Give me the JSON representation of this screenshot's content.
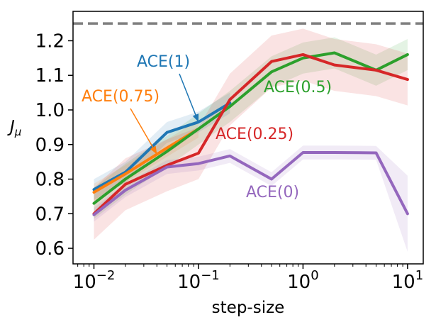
{
  "chart_data": {
    "type": "line",
    "title": "",
    "xlabel": "step-size",
    "ylabel": "J",
    "ylabel_sub": "μ",
    "xscale": "log",
    "xlim_log10": [
      -2.2,
      1.15
    ],
    "ylim": [
      0.555,
      1.285
    ],
    "yticks": [
      {
        "value": 0.6,
        "label": "0.6"
      },
      {
        "value": 0.7,
        "label": "0.7"
      },
      {
        "value": 0.8,
        "label": "0.8"
      },
      {
        "value": 0.9,
        "label": "0.9"
      },
      {
        "value": 1.0,
        "label": "1.0"
      },
      {
        "value": 1.1,
        "label": "1.1"
      },
      {
        "value": 1.2,
        "label": "1.2"
      }
    ],
    "xticks": [
      {
        "exp": -2,
        "base": "10",
        "sup": "−2"
      },
      {
        "exp": -1,
        "base": "10",
        "sup": "−1"
      },
      {
        "exp": 0,
        "base": "10",
        "sup": "0"
      },
      {
        "exp": 1,
        "base": "10",
        "sup": "1"
      }
    ],
    "reference_line": {
      "y": 1.25,
      "color": "#7f7f7f"
    },
    "series": [
      {
        "name": "ACE(1)",
        "color": "#1f77b4",
        "x": [
          0.01,
          0.02,
          0.05,
          0.1,
          0.2
        ],
        "y": [
          0.77,
          0.82,
          0.935,
          0.965,
          1.02
        ],
        "band": 0.03
      },
      {
        "name": "ACE(0.75)",
        "color": "#ff7f0e",
        "x": [
          0.01,
          0.02,
          0.05,
          0.1
        ],
        "y": [
          0.762,
          0.815,
          0.89,
          0.945
        ],
        "band": 0.025
      },
      {
        "name": "ACE(0.5)",
        "color": "#2ca02c",
        "x": [
          0.01,
          0.02,
          0.05,
          0.1,
          0.2,
          0.5,
          1,
          2,
          5,
          10
        ],
        "y": [
          0.73,
          0.8,
          0.88,
          0.945,
          1.01,
          1.11,
          1.15,
          1.165,
          1.115,
          1.16
        ],
        "band": 0.045
      },
      {
        "name": "ACE(0.25)",
        "color": "#d62728",
        "x": [
          0.01,
          0.02,
          0.05,
          0.1,
          0.2,
          0.5,
          1,
          2,
          5,
          10
        ],
        "y": [
          0.7,
          0.785,
          0.84,
          0.875,
          1.03,
          1.14,
          1.16,
          1.13,
          1.115,
          1.088
        ],
        "band": 0.075
      },
      {
        "name": "ACE(0)",
        "color": "#9467bd",
        "x": [
          0.01,
          0.02,
          0.05,
          0.1,
          0.2,
          0.5,
          1,
          2,
          5,
          10
        ],
        "y": [
          0.697,
          0.768,
          0.835,
          0.845,
          0.867,
          0.8,
          0.877,
          0.877,
          0.876,
          0.7
        ],
        "band": 0.02,
        "band_last": 0.11
      }
    ],
    "annotations": [
      {
        "text": "ACE(1)",
        "color": "#1f77b4",
        "arrow": true
      },
      {
        "text": "ACE(0.75)",
        "color": "#ff7f0e",
        "arrow": true
      },
      {
        "text": "ACE(0.5)",
        "color": "#2ca02c",
        "arrow": false
      },
      {
        "text": "ACE(0.25)",
        "color": "#d62728",
        "arrow": false
      },
      {
        "text": "ACE(0)",
        "color": "#9467bd",
        "arrow": false
      }
    ]
  }
}
